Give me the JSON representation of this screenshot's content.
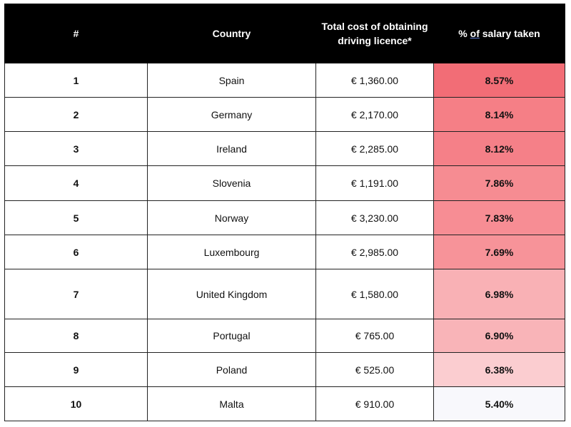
{
  "table": {
    "headers": [
      "#",
      "Country",
      "Total cost of obtaining driving licence*",
      "% of salary taken"
    ],
    "rows": [
      {
        "rank": "1",
        "country": "Spain",
        "cost": "€ 1,360.00",
        "pct": "8.57%",
        "color": "#f26d76"
      },
      {
        "rank": "2",
        "country": "Germany",
        "cost": "€ 2,170.00",
        "pct": "8.14%",
        "color": "#f57f86"
      },
      {
        "rank": "3",
        "country": "Ireland",
        "cost": "€ 2,285.00",
        "pct": "8.12%",
        "color": "#f58088"
      },
      {
        "rank": "4",
        "country": "Slovenia",
        "cost": "€ 1,191.00",
        "pct": "7.86%",
        "color": "#f68c92"
      },
      {
        "rank": "5",
        "country": "Norway",
        "cost": "€ 3,230.00",
        "pct": "7.83%",
        "color": "#f78d94"
      },
      {
        "rank": "6",
        "country": "Luxembourg",
        "cost": "€ 2,985.00",
        "pct": "7.69%",
        "color": "#f79399"
      },
      {
        "rank": "7",
        "country": "United Kingdom",
        "cost": "€ 1,580.00",
        "pct": "6.98%",
        "color": "#f9b1b5"
      },
      {
        "rank": "8",
        "country": "Portugal",
        "cost": "€ 765.00",
        "pct": "6.90%",
        "color": "#f9b4b8"
      },
      {
        "rank": "9",
        "country": "Poland",
        "cost": "€ 525.00",
        "pct": "6.38%",
        "color": "#fbcdd0"
      },
      {
        "rank": "10",
        "country": "Malta",
        "cost": "€ 910.00",
        "pct": "5.40%",
        "color": "#f8f8fc"
      }
    ]
  }
}
